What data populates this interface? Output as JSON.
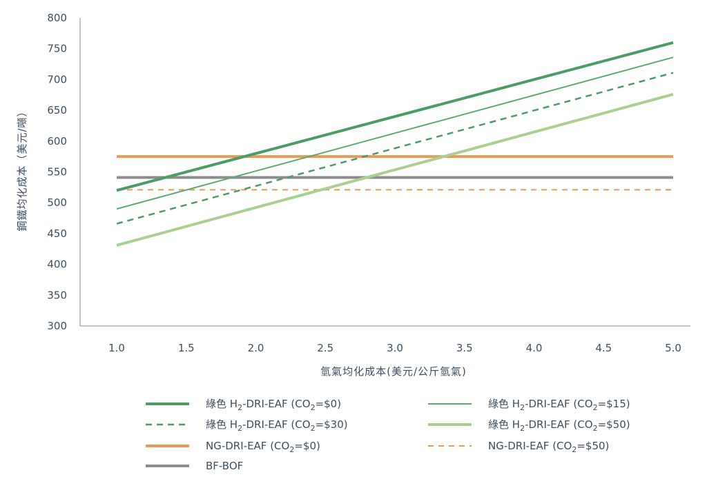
{
  "chart_data": {
    "type": "line",
    "xlabel": "氫氣均化成本(美元/公斤氫氣)",
    "ylabel": "鋼鐵均化成本（美元/噸）",
    "xlim": [
      1.0,
      5.0
    ],
    "ylim": [
      300,
      800
    ],
    "x_ticks": [
      "1.0",
      "1.5",
      "2.0",
      "2.5",
      "3.0",
      "3.5",
      "4.0",
      "4.5",
      "5.0"
    ],
    "y_ticks": [
      "300",
      "350",
      "400",
      "450",
      "500",
      "550",
      "600",
      "650",
      "700",
      "750",
      "800"
    ],
    "grid": false,
    "legend_position": "bottom",
    "series": [
      {
        "name": "綠色 H2-DRI-EAF (CO2=$0)",
        "label_parts": [
          "綠色 H",
          "2",
          "-DRI-EAF (CO",
          "2",
          "=$0)"
        ],
        "x": [
          1.0,
          5.0
        ],
        "y": [
          520,
          760
        ],
        "color": "#4a9e63",
        "style": "thick"
      },
      {
        "name": "綠色 H2-DRI-EAF (CO2=$15)",
        "label_parts": [
          "綠色 H",
          "2",
          "-DRI-EAF (CO",
          "2",
          "=$15)"
        ],
        "x": [
          1.0,
          5.0
        ],
        "y": [
          490,
          736
        ],
        "color": "#5aac6f",
        "style": "thin"
      },
      {
        "name": "綠色 H2-DRI-EAF (CO2=$30)",
        "label_parts": [
          "綠色 H",
          "2",
          "-DRI-EAF (CO",
          "2",
          "=$30)"
        ],
        "x": [
          1.0,
          5.0
        ],
        "y": [
          466,
          711
        ],
        "color": "#4a9e63",
        "style": "dashed"
      },
      {
        "name": "綠色 H2-DRI-EAF (CO2=$50)",
        "label_parts": [
          "綠色 H",
          "2",
          "-DRI-EAF (CO",
          "2",
          "=$50)"
        ],
        "x": [
          1.0,
          5.0
        ],
        "y": [
          431,
          676
        ],
        "color": "#a9d08e",
        "style": "thick"
      },
      {
        "name": "NG-DRI-EAF (CO2=$0)",
        "label_parts": [
          "NG-DRI-EAF (CO",
          "2",
          "=$0)"
        ],
        "x": [
          1.0,
          5.0
        ],
        "y": [
          575,
          575
        ],
        "color": "#e89b55",
        "style": "thick"
      },
      {
        "name": "NG-DRI-EAF (CO2=$50)",
        "label_parts": [
          "NG-DRI-EAF (CO",
          "2",
          "=$50)"
        ],
        "x": [
          1.0,
          5.0
        ],
        "y": [
          521,
          521
        ],
        "color": "#e89b55",
        "style": "dashed-thin"
      },
      {
        "name": "BF-BOF",
        "label_parts": [
          "BF-BOF"
        ],
        "x": [
          1.0,
          5.0
        ],
        "y": [
          541,
          541
        ],
        "color": "#8c8c8c",
        "style": "thick"
      }
    ]
  }
}
